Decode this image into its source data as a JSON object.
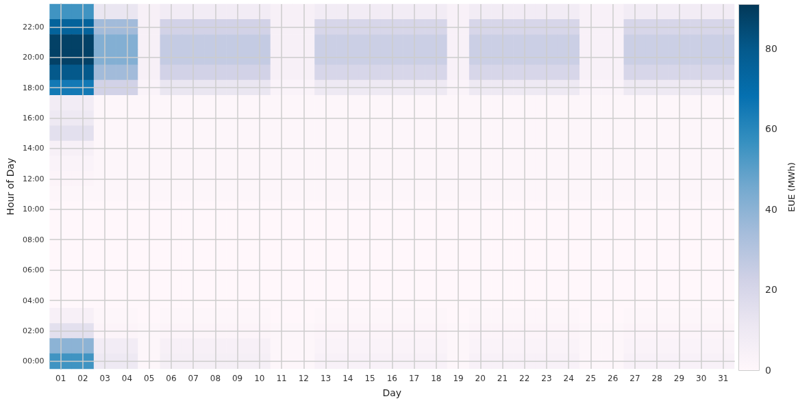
{
  "chart_data": {
    "type": "heatmap",
    "xlabel": "Day",
    "ylabel": "Hour of Day",
    "clabel": "EUE (MWh)",
    "categories": [
      "01",
      "02",
      "03",
      "04",
      "05",
      "06",
      "07",
      "08",
      "09",
      "10",
      "11",
      "12",
      "13",
      "14",
      "15",
      "16",
      "17",
      "18",
      "19",
      "20",
      "21",
      "22",
      "23",
      "24",
      "25",
      "26",
      "27",
      "28",
      "29",
      "30",
      "31"
    ],
    "y_categories": [
      null,
      "22:00",
      null,
      "20:00",
      null,
      "18:00",
      null,
      "16:00",
      null,
      "14:00",
      null,
      "12:00",
      null,
      "10:00",
      null,
      "08:00",
      null,
      "06:00",
      null,
      "04:00",
      null,
      "02:00",
      null,
      "00:00"
    ],
    "cells": [
      [
        55,
        55,
        12,
        12,
        5,
        8,
        8,
        8,
        8,
        8,
        5,
        5,
        8,
        8,
        8,
        8,
        8,
        8,
        4,
        8,
        8,
        8,
        8,
        8,
        4,
        4,
        8,
        8,
        8,
        8,
        8
      ],
      [
        75,
        75,
        35,
        35,
        5,
        22,
        22,
        22,
        22,
        22,
        5,
        5,
        20,
        20,
        20,
        20,
        20,
        20,
        4,
        20,
        20,
        20,
        20,
        20,
        4,
        4,
        20,
        20,
        20,
        20,
        20
      ],
      [
        88,
        88,
        42,
        42,
        5,
        26,
        26,
        26,
        26,
        26,
        5,
        5,
        24,
        24,
        24,
        24,
        24,
        24,
        4,
        24,
        24,
        24,
        24,
        24,
        4,
        4,
        24,
        24,
        24,
        24,
        24
      ],
      [
        88,
        88,
        42,
        42,
        5,
        26,
        26,
        26,
        26,
        26,
        5,
        5,
        24,
        24,
        24,
        24,
        24,
        24,
        4,
        24,
        24,
        24,
        24,
        24,
        4,
        4,
        24,
        24,
        24,
        24,
        24
      ],
      [
        80,
        80,
        35,
        35,
        5,
        22,
        22,
        22,
        22,
        22,
        5,
        5,
        20,
        20,
        20,
        20,
        20,
        20,
        4,
        20,
        20,
        20,
        20,
        20,
        4,
        4,
        20,
        20,
        20,
        20,
        20
      ],
      [
        65,
        65,
        22,
        22,
        3,
        12,
        12,
        12,
        12,
        12,
        3,
        3,
        10,
        10,
        10,
        10,
        10,
        10,
        3,
        10,
        10,
        10,
        10,
        10,
        3,
        3,
        10,
        10,
        10,
        10,
        10
      ],
      [
        8,
        8,
        1,
        1,
        1,
        1,
        1,
        1,
        1,
        1,
        1,
        1,
        1,
        1,
        1,
        1,
        1,
        1,
        1,
        1,
        1,
        1,
        1,
        1,
        1,
        1,
        1,
        1,
        1,
        1,
        1
      ],
      [
        10,
        10,
        1,
        1,
        1,
        1,
        1,
        1,
        1,
        1,
        1,
        1,
        1,
        1,
        1,
        1,
        1,
        1,
        1,
        1,
        1,
        1,
        1,
        1,
        1,
        1,
        1,
        1,
        1,
        1,
        1
      ],
      [
        15,
        15,
        1,
        1,
        1,
        1,
        1,
        1,
        1,
        1,
        1,
        1,
        1,
        1,
        1,
        1,
        1,
        1,
        1,
        1,
        1,
        1,
        1,
        1,
        1,
        1,
        1,
        1,
        1,
        1,
        1
      ],
      [
        5,
        5,
        1,
        1,
        1,
        1,
        1,
        1,
        1,
        1,
        1,
        1,
        1,
        1,
        1,
        1,
        1,
        1,
        1,
        1,
        1,
        1,
        1,
        1,
        1,
        1,
        1,
        1,
        1,
        1,
        1
      ],
      [
        3,
        3,
        1,
        1,
        1,
        1,
        1,
        1,
        1,
        1,
        1,
        1,
        1,
        1,
        1,
        1,
        1,
        1,
        1,
        1,
        1,
        1,
        1,
        1,
        1,
        1,
        1,
        1,
        1,
        1,
        1
      ],
      [
        2,
        2,
        1,
        1,
        1,
        1,
        1,
        1,
        1,
        1,
        1,
        1,
        1,
        1,
        1,
        1,
        1,
        1,
        1,
        1,
        1,
        1,
        1,
        1,
        1,
        1,
        1,
        1,
        1,
        1,
        1
      ],
      [
        1,
        1,
        1,
        1,
        1,
        1,
        1,
        1,
        1,
        1,
        1,
        1,
        1,
        1,
        1,
        1,
        1,
        1,
        1,
        1,
        1,
        1,
        1,
        1,
        1,
        1,
        1,
        1,
        1,
        1,
        1
      ],
      [
        0,
        0,
        0,
        0,
        0,
        0,
        0,
        0,
        0,
        0,
        0,
        0,
        0,
        0,
        0,
        0,
        0,
        0,
        0,
        0,
        0,
        0,
        0,
        0,
        0,
        0,
        0,
        0,
        0,
        0,
        0
      ],
      [
        0,
        0,
        0,
        0,
        0,
        0,
        0,
        0,
        0,
        0,
        0,
        0,
        0,
        0,
        0,
        0,
        0,
        0,
        0,
        0,
        0,
        0,
        0,
        0,
        0,
        0,
        0,
        0,
        0,
        0,
        0
      ],
      [
        0,
        0,
        0,
        0,
        0,
        0,
        0,
        0,
        0,
        0,
        0,
        0,
        0,
        0,
        0,
        0,
        0,
        0,
        0,
        0,
        0,
        0,
        0,
        0,
        0,
        0,
        0,
        0,
        0,
        0,
        0
      ],
      [
        0,
        0,
        0,
        0,
        0,
        0,
        0,
        0,
        0,
        0,
        0,
        0,
        0,
        0,
        0,
        0,
        0,
        0,
        0,
        0,
        0,
        0,
        0,
        0,
        0,
        0,
        0,
        0,
        0,
        0,
        0
      ],
      [
        0,
        0,
        0,
        0,
        0,
        0,
        0,
        0,
        0,
        0,
        0,
        0,
        0,
        0,
        0,
        0,
        0,
        0,
        0,
        0,
        0,
        0,
        0,
        0,
        0,
        0,
        0,
        0,
        0,
        0,
        0
      ],
      [
        0,
        0,
        0,
        0,
        0,
        0,
        0,
        0,
        0,
        0,
        0,
        0,
        0,
        0,
        0,
        0,
        0,
        0,
        0,
        0,
        0,
        0,
        0,
        0,
        0,
        0,
        0,
        0,
        0,
        0,
        0
      ],
      [
        0,
        0,
        0,
        0,
        0,
        0,
        0,
        0,
        0,
        0,
        0,
        0,
        0,
        0,
        0,
        0,
        0,
        0,
        0,
        0,
        0,
        0,
        0,
        0,
        0,
        0,
        0,
        0,
        0,
        0,
        0
      ],
      [
        5,
        5,
        1,
        1,
        0,
        1,
        1,
        1,
        1,
        1,
        0,
        0,
        1,
        1,
        1,
        1,
        1,
        1,
        0,
        1,
        1,
        1,
        1,
        1,
        0,
        0,
        1,
        1,
        1,
        1,
        1
      ],
      [
        15,
        15,
        2,
        2,
        1,
        2,
        2,
        2,
        2,
        2,
        1,
        1,
        2,
        2,
        2,
        2,
        2,
        2,
        1,
        2,
        2,
        2,
        2,
        2,
        1,
        1,
        2,
        2,
        2,
        2,
        2
      ],
      [
        40,
        40,
        8,
        8,
        1,
        5,
        5,
        5,
        5,
        5,
        1,
        1,
        3,
        3,
        3,
        3,
        3,
        3,
        1,
        3,
        3,
        3,
        3,
        3,
        1,
        1,
        3,
        3,
        3,
        3,
        3
      ],
      [
        55,
        55,
        10,
        10,
        1,
        6,
        6,
        6,
        6,
        6,
        1,
        1,
        4,
        4,
        4,
        4,
        4,
        4,
        1,
        4,
        4,
        4,
        4,
        4,
        1,
        1,
        4,
        4,
        4,
        4,
        4
      ]
    ],
    "clim": [
      0,
      91
    ],
    "cticks": [
      0,
      20,
      40,
      60,
      80
    ],
    "grid": true
  }
}
